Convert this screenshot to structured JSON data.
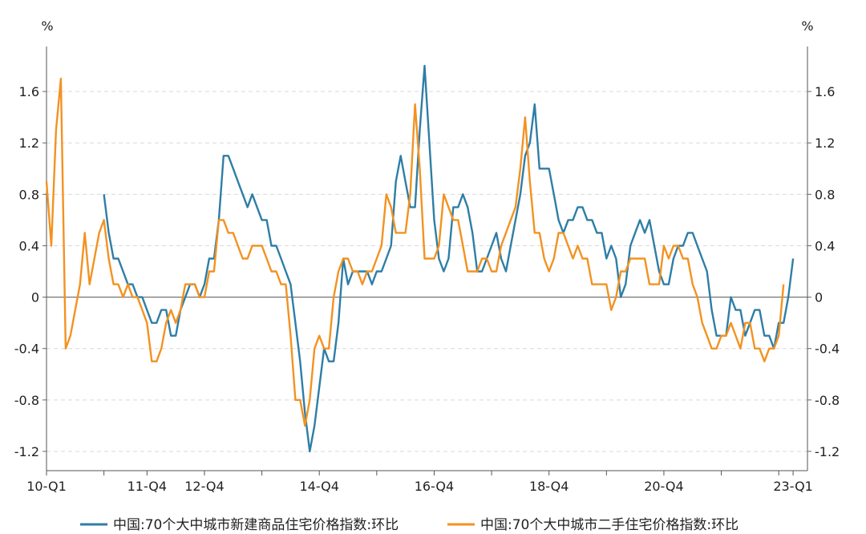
{
  "chart_data": {
    "type": "line",
    "y_unit_left": "%",
    "y_unit_right": "%",
    "ylim": [
      -1.35,
      1.95
    ],
    "y_ticks": [
      -1.2,
      -0.8,
      -0.4,
      0,
      0.4,
      0.8,
      1.2,
      1.6
    ],
    "y_tick_labels": [
      "-1.2",
      "-0.8",
      "-0.4",
      "0",
      "0.4",
      "0.8",
      "1.2",
      "1.6"
    ],
    "x_range": [
      0,
      159
    ],
    "x_ticks": [
      {
        "label": "10-Q1",
        "pos": 0
      },
      {
        "label": "11-Q4",
        "pos": 21
      },
      {
        "label": "12-Q4",
        "pos": 33
      },
      {
        "label": "14-Q4",
        "pos": 57
      },
      {
        "label": "16-Q4",
        "pos": 81
      },
      {
        "label": "18-Q4",
        "pos": 105
      },
      {
        "label": "20-Q4",
        "pos": 129
      },
      {
        "label": "23-Q1",
        "pos": 156
      }
    ],
    "x_minor_ticks": [
      12,
      45,
      69,
      93,
      117,
      141,
      153
    ],
    "zero_line": true,
    "grid": "horizontal dashed",
    "legend_position": "bottom",
    "series": [
      {
        "name": "中国:70个大中城市新建商品住宅价格指数:环比",
        "color": "#2e7ea6",
        "start": 12,
        "values": [
          0.8,
          0.5,
          0.3,
          0.3,
          0.2,
          0.1,
          0.1,
          0.0,
          0.0,
          -0.1,
          -0.2,
          -0.2,
          -0.1,
          -0.1,
          -0.3,
          -0.3,
          -0.1,
          0.0,
          0.1,
          0.1,
          0.0,
          0.1,
          0.3,
          0.3,
          0.6,
          1.1,
          1.1,
          1.0,
          0.9,
          0.8,
          0.7,
          0.8,
          0.7,
          0.6,
          0.6,
          0.4,
          0.4,
          0.3,
          0.2,
          0.1,
          -0.2,
          -0.5,
          -0.9,
          -1.2,
          -1.0,
          -0.7,
          -0.4,
          -0.5,
          -0.5,
          -0.2,
          0.3,
          0.1,
          0.2,
          0.2,
          0.2,
          0.2,
          0.1,
          0.2,
          0.2,
          0.3,
          0.4,
          0.9,
          1.1,
          0.9,
          0.7,
          0.7,
          1.3,
          1.8,
          1.2,
          0.6,
          0.3,
          0.2,
          0.3,
          0.7,
          0.7,
          0.8,
          0.7,
          0.5,
          0.2,
          0.2,
          0.3,
          0.4,
          0.5,
          0.3,
          0.2,
          0.4,
          0.6,
          0.8,
          1.1,
          1.2,
          1.5,
          1.0,
          1.0,
          1.0,
          0.8,
          0.6,
          0.5,
          0.6,
          0.6,
          0.7,
          0.7,
          0.6,
          0.6,
          0.5,
          0.5,
          0.3,
          0.4,
          0.3,
          0.0,
          0.1,
          0.4,
          0.5,
          0.6,
          0.5,
          0.6,
          0.4,
          0.2,
          0.1,
          0.1,
          0.3,
          0.4,
          0.4,
          0.5,
          0.5,
          0.4,
          0.3,
          0.2,
          -0.1,
          -0.3,
          -0.3,
          -0.3,
          0.0,
          -0.1,
          -0.1,
          -0.3,
          -0.2,
          -0.1,
          -0.1,
          -0.3,
          -0.3,
          -0.4,
          -0.2,
          -0.2,
          0.0,
          0.3
        ]
      },
      {
        "name": "中国:70个大中城市二手住宅价格指数:环比",
        "color": "#f39221",
        "start": 0,
        "values": [
          0.9,
          0.4,
          1.3,
          1.7,
          -0.4,
          -0.3,
          -0.1,
          0.1,
          0.5,
          0.1,
          0.3,
          0.5,
          0.6,
          0.3,
          0.1,
          0.1,
          0.0,
          0.1,
          0.0,
          0.0,
          -0.1,
          -0.2,
          -0.5,
          -0.5,
          -0.4,
          -0.2,
          -0.1,
          -0.2,
          -0.1,
          0.1,
          0.1,
          0.1,
          0.0,
          0.0,
          0.2,
          0.2,
          0.6,
          0.6,
          0.5,
          0.5,
          0.4,
          0.3,
          0.3,
          0.4,
          0.4,
          0.4,
          0.3,
          0.2,
          0.2,
          0.1,
          0.1,
          -0.3,
          -0.8,
          -0.8,
          -1.0,
          -0.8,
          -0.4,
          -0.3,
          -0.4,
          -0.4,
          0.0,
          0.2,
          0.3,
          0.3,
          0.2,
          0.2,
          0.1,
          0.2,
          0.2,
          0.3,
          0.4,
          0.8,
          0.7,
          0.5,
          0.5,
          0.5,
          0.8,
          1.5,
          1.0,
          0.3,
          0.3,
          0.3,
          0.4,
          0.8,
          0.7,
          0.6,
          0.6,
          0.4,
          0.2,
          0.2,
          0.2,
          0.3,
          0.3,
          0.2,
          0.2,
          0.4,
          0.5,
          0.6,
          0.7,
          1.0,
          1.4,
          0.9,
          0.5,
          0.5,
          0.3,
          0.2,
          0.3,
          0.5,
          0.5,
          0.4,
          0.3,
          0.4,
          0.3,
          0.3,
          0.1,
          0.1,
          0.1,
          0.1,
          -0.1,
          0.0,
          0.2,
          0.2,
          0.3,
          0.3,
          0.3,
          0.3,
          0.1,
          0.1,
          0.1,
          0.4,
          0.3,
          0.4,
          0.4,
          0.3,
          0.3,
          0.1,
          0.0,
          -0.2,
          -0.3,
          -0.4,
          -0.4,
          -0.3,
          -0.3,
          -0.2,
          -0.3,
          -0.4,
          -0.2,
          -0.2,
          -0.4,
          -0.4,
          -0.5,
          -0.4,
          -0.4,
          -0.3,
          0.1
        ]
      }
    ]
  }
}
